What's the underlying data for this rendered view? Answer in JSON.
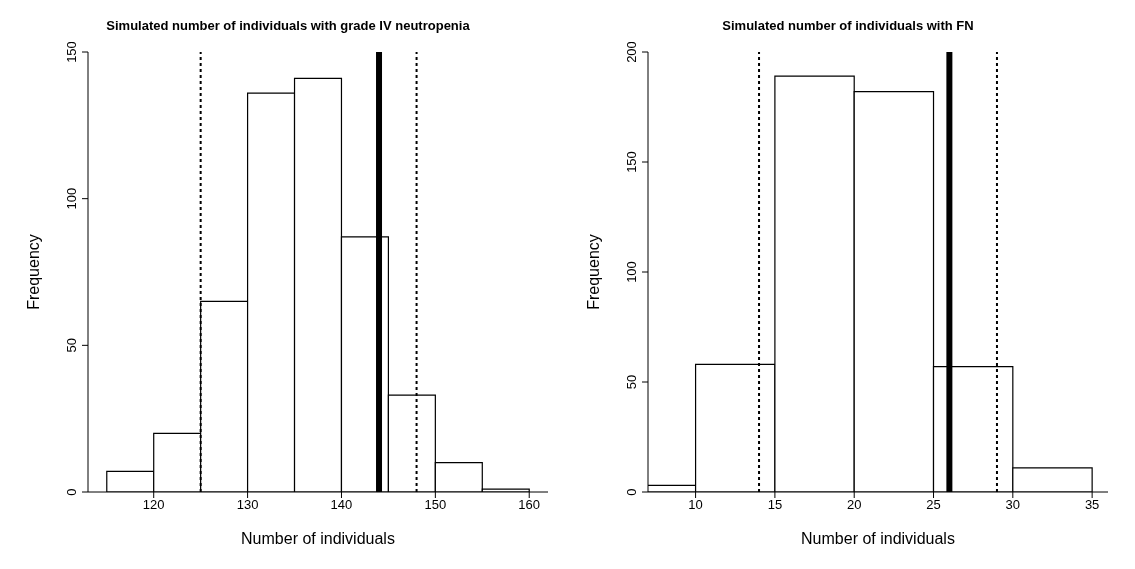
{
  "chart_data": [
    {
      "type": "histogram",
      "title": "Simulated number of individuals with grade IV neutropenia",
      "xlabel": "Number of individuals",
      "ylabel": "Frequency",
      "bins": [
        115,
        120,
        125,
        130,
        135,
        140,
        145,
        150,
        155,
        160
      ],
      "values": [
        7,
        20,
        65,
        136,
        141,
        87,
        33,
        10,
        1
      ],
      "color": "#ffffff",
      "xlim": [
        113,
        162
      ],
      "xticks": [
        120,
        130,
        140,
        150,
        160
      ],
      "ylim": [
        0,
        150
      ],
      "yticks": [
        0,
        50,
        100,
        150
      ],
      "grid": false,
      "ref_lines": [
        {
          "axis": "x",
          "value": 125,
          "line_style": "dotted",
          "color": "#000000"
        },
        {
          "axis": "x",
          "value": 148,
          "line_style": "dotted",
          "color": "#000000"
        },
        {
          "axis": "x",
          "value": 144,
          "line_style": "solid",
          "color": "#000000"
        }
      ]
    },
    {
      "type": "histogram",
      "title": "Simulated number of individuals with FN",
      "xlabel": "Number of individuals",
      "ylabel": "Frequency",
      "bins": [
        5,
        10,
        15,
        20,
        25,
        30,
        35
      ],
      "values": [
        3,
        58,
        189,
        182,
        57,
        11
      ],
      "color": "#ffffff",
      "xlim": [
        7,
        36
      ],
      "xticks": [
        10,
        15,
        20,
        25,
        30,
        35
      ],
      "ylim": [
        0,
        200
      ],
      "yticks": [
        0,
        50,
        100,
        150,
        200
      ],
      "grid": false,
      "ref_lines": [
        {
          "axis": "x",
          "value": 14,
          "line_style": "dotted",
          "color": "#000000"
        },
        {
          "axis": "x",
          "value": 29,
          "line_style": "dotted",
          "color": "#000000"
        },
        {
          "axis": "x",
          "value": 26,
          "line_style": "solid",
          "color": "#000000"
        }
      ]
    }
  ]
}
